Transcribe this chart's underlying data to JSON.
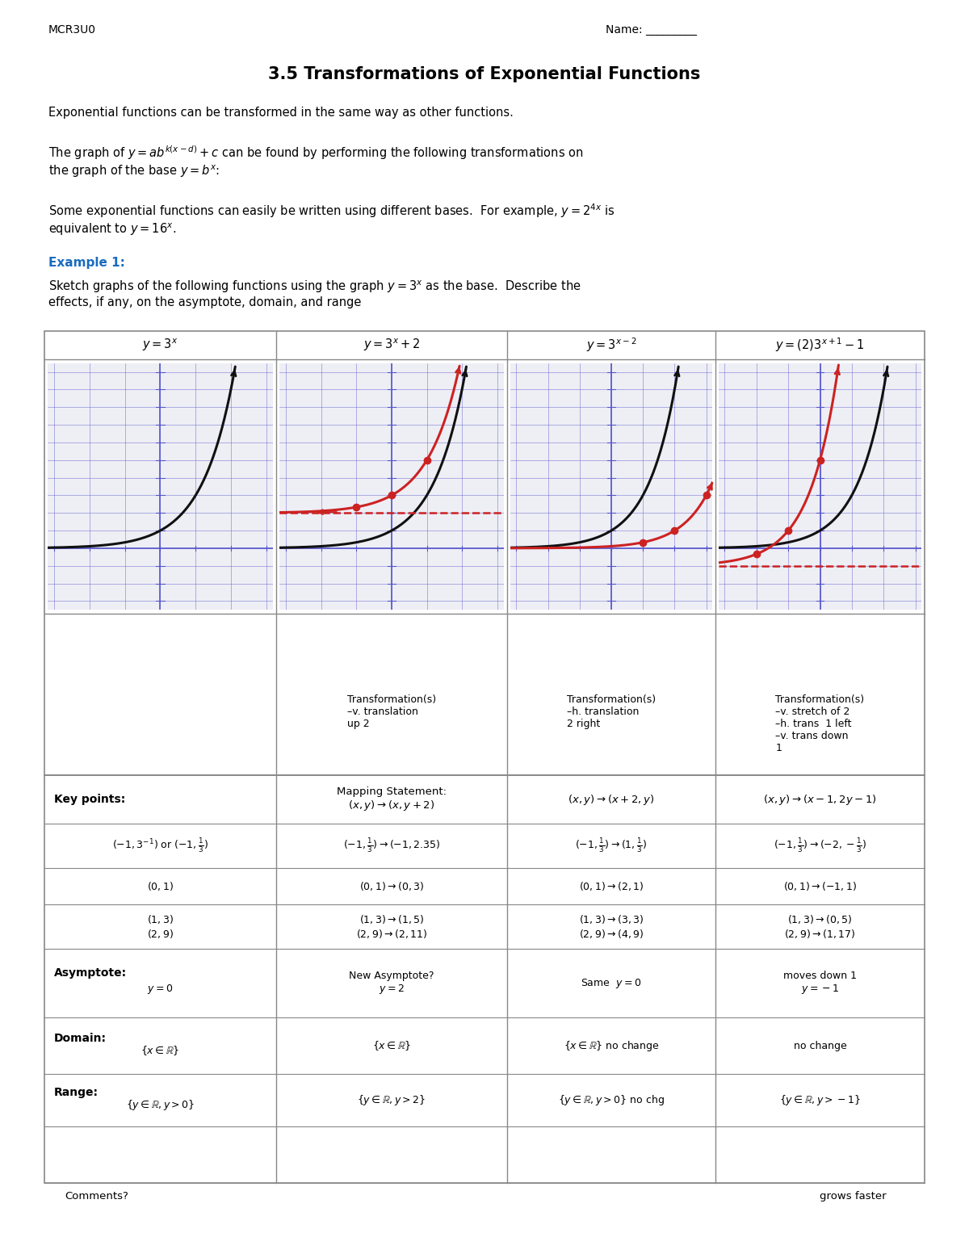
{
  "title": "3.5 Transformations of Exponential Functions",
  "header_left": "MCR3U0",
  "header_right": "Name: _________",
  "para1": "Exponential functions can be transformed in the same way as other functions.",
  "para2": "The graph of $y = ab^{k(x-d)} + c$ can be found by performing the following transformations on\nthe graph of the base $y = b^x$:",
  "para3": "Some exponential functions can easily be written using different bases.  For example, $y = 2^{4x}$ is\nequivalent to $y = 16^x$.",
  "example1_label": "Example 1:",
  "example1_text": "Sketch graphs of the following functions using the graph $y = 3^x$ as the base.  Describe the\neffects, if any, on the asymptote, domain, and range",
  "gt_titles": [
    "$y = 3^x$",
    "$y = 3^x + 2$",
    "$y = 3^{x-2}$",
    "$y = (2)3^{x+1} - 1$"
  ],
  "trans_texts": [
    "",
    "Transformation(s)\n–v. translation\nup 2",
    "Transformation(s)\n–h. translation\n2 right",
    "Transformation(s)\n–v. stretch of 2\n–h. trans  1 left\n–v. trans down\n1"
  ],
  "bg_color": "#ffffff",
  "table_line_color": "#888888",
  "graph_bg": "#eeeef5",
  "black_curve": "#111111",
  "red_curve": "#cc2222",
  "blue_axis": "#5555cc",
  "example_color": "#1a6bbf",
  "red_dashed": "#cc2222",
  "handwriting_color": "#333333"
}
